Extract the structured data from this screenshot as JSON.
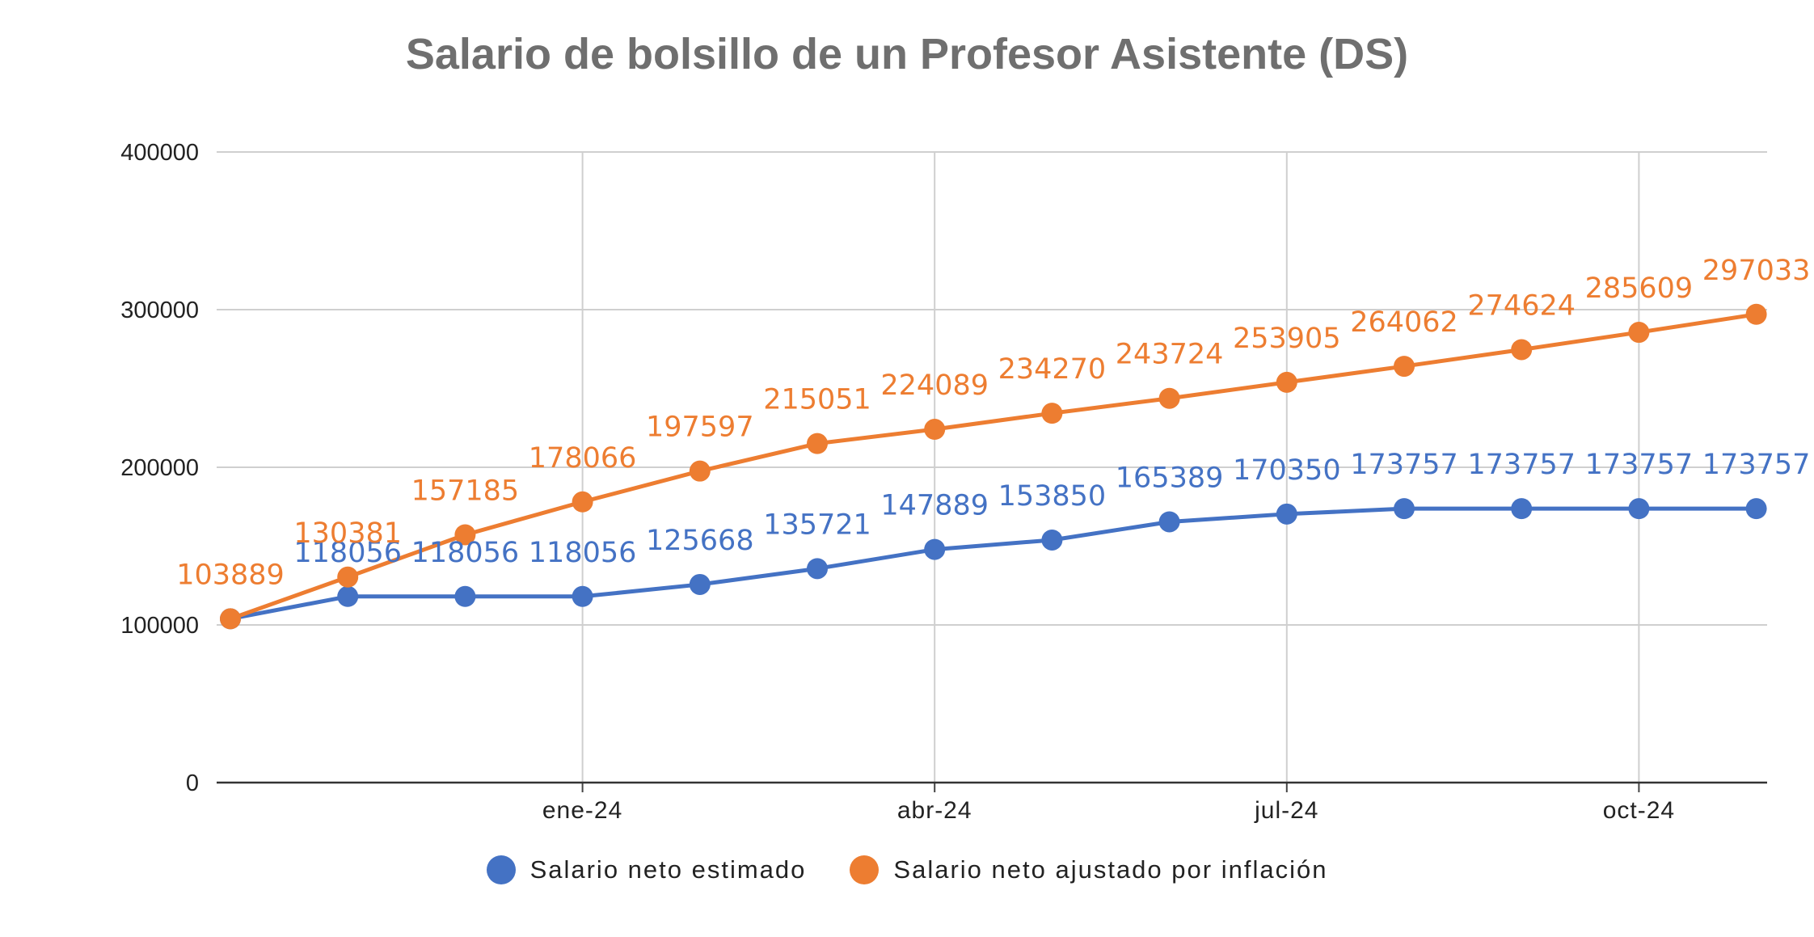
{
  "chart_data": {
    "type": "line",
    "title": "Salario de bolsillo de un Profesor Asistente (DS)",
    "xlabel": "",
    "ylabel": "",
    "ylim": [
      0,
      400000
    ],
    "yticks": [
      "0",
      "100000",
      "200000",
      "300000",
      "400000"
    ],
    "xtick_labels": [
      "ene-24",
      "abr-24",
      "jul-24",
      "oct-24"
    ],
    "grid": true,
    "legend_position": "bottom",
    "series": [
      {
        "name": "Salario neto estimado",
        "color": "#4472C4",
        "values": [
          103889,
          118056,
          118056,
          118056,
          125668,
          135721,
          147889,
          153850,
          165389,
          170350,
          173757,
          173757,
          173757,
          173757
        ]
      },
      {
        "name": "Salario neto ajustado por inflación",
        "color": "#ED7D31",
        "values": [
          103889,
          130381,
          157185,
          178066,
          197597,
          215051,
          224089,
          234270,
          243724,
          253905,
          264062,
          274624,
          285609,
          297033
        ]
      }
    ]
  }
}
